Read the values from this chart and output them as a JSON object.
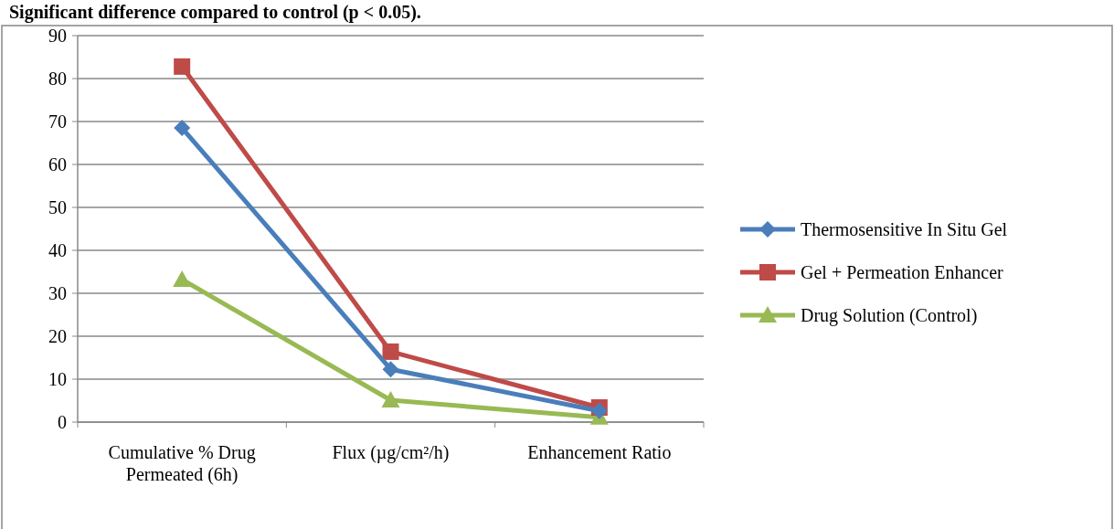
{
  "chart_data": {
    "type": "line",
    "title": "Significant difference compared to control (p < 0.05).",
    "categories": [
      "Cumulative % Drug Permeated (6h)",
      "Flux (µg/cm²/h)",
      "Enhancement Ratio"
    ],
    "series": [
      {
        "name": "Thermosensitive In Situ Gel",
        "color": "#4a7ebb",
        "marker": "diamond",
        "values": [
          68.5,
          12.3,
          2.6
        ]
      },
      {
        "name": "Gel + Permeation Enhancer",
        "color": "#be4b48",
        "marker": "square",
        "values": [
          82.8,
          16.4,
          3.4
        ]
      },
      {
        "name": "Drug Solution (Control)",
        "color": "#98b954",
        "marker": "triangle",
        "values": [
          33.2,
          5.1,
          1.1
        ]
      }
    ],
    "ylim": [
      0,
      90
    ],
    "yticks": [
      0,
      10,
      20,
      30,
      40,
      50,
      60,
      70,
      80,
      90
    ],
    "grid": "y",
    "legend": "right",
    "line_style": "solid"
  }
}
